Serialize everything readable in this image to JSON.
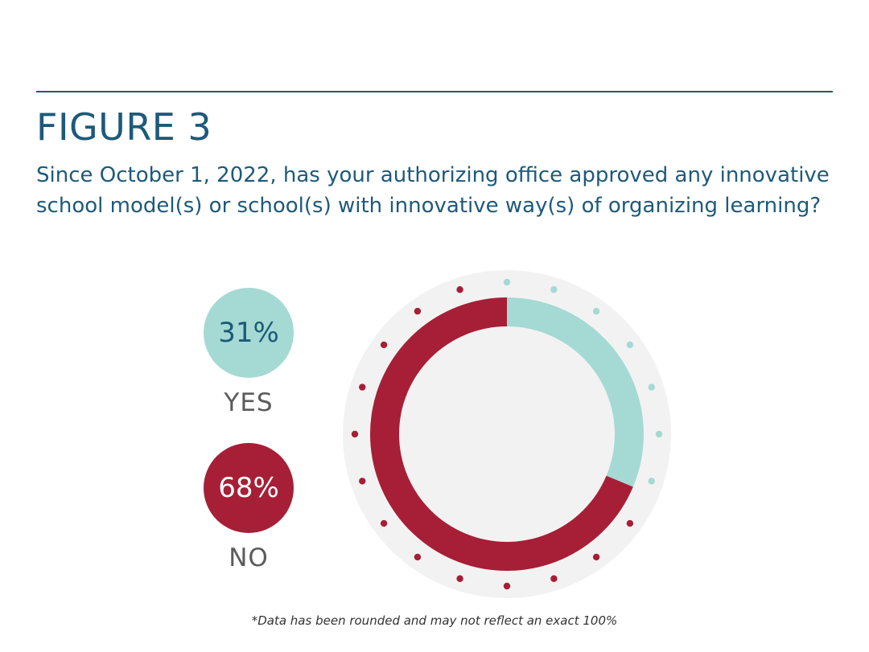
{
  "header": {
    "figure_label": "FIGURE 3",
    "question": "Since October 1, 2022, has your authorizing office approved any innovative school model(s) or school(s) with innovative way(s) of organizing learning?"
  },
  "legend": {
    "yes": {
      "percent": "31%",
      "label": "YES"
    },
    "no": {
      "percent": "68%",
      "label": "NO"
    }
  },
  "footnote": "*Data has been rounded and may not reflect an exact 100%",
  "colors": {
    "yes": "#a4dad3",
    "no": "#a61f36",
    "title": "#1d5a7a",
    "backdrop": "#f2f2f2"
  },
  "chart_data": {
    "type": "pie",
    "categories": [
      "YES",
      "NO"
    ],
    "values": [
      31,
      68
    ],
    "unit": "%",
    "donut": true,
    "legend_position": "left"
  }
}
